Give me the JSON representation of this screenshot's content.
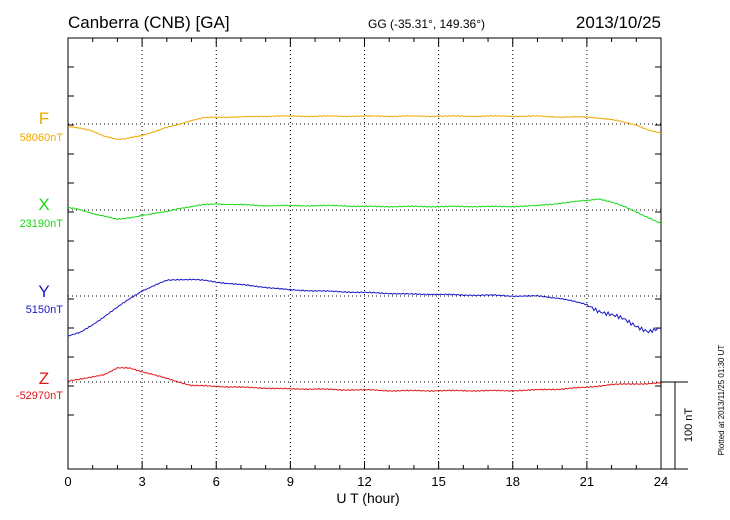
{
  "header": {
    "station": "Canberra (CNB)  [GA]",
    "coords": "GG (-35.31°, 149.36°)",
    "date": "2013/10/25"
  },
  "side_note": "Plotted at 2013/11/25 01:30 UT",
  "colors": {
    "F": "#f0a800",
    "X": "#18d818",
    "Y": "#1818c8",
    "Z": "#e01818",
    "frame": "#000000"
  },
  "chart_data": {
    "type": "line",
    "title": "Canberra (CNB)  [GA]",
    "xlabel": "U T (hour)",
    "ylabel": "",
    "xlim": [
      0,
      24
    ],
    "x_ticks": [
      0,
      3,
      6,
      9,
      12,
      15,
      18,
      21,
      24
    ],
    "x_tick_labels": [
      "0",
      "3",
      "6",
      "9",
      "12",
      "15",
      "18",
      "21",
      "24"
    ],
    "y_units": "nT",
    "grid": true,
    "scale_bar": {
      "label": "100 nT",
      "value_nT": 100
    },
    "series": [
      {
        "name": "F",
        "baseline_label": "58060nT",
        "baseline_nT": 58060,
        "x": [
          0,
          0.5,
          1,
          1.5,
          2,
          2.3,
          2.6,
          3,
          3.5,
          4,
          4.5,
          5,
          5.5,
          6,
          7,
          8,
          9,
          10,
          11,
          12,
          13,
          14,
          15,
          16,
          17,
          18,
          19,
          20,
          21,
          21.5,
          22,
          22.5,
          23,
          23.5,
          24
        ],
        "values": [
          -3,
          -5,
          -8,
          -14,
          -18,
          -17,
          -15,
          -13,
          -9,
          -4,
          0,
          4,
          7,
          8,
          8,
          9,
          9,
          9,
          9,
          9,
          9,
          9,
          9,
          9,
          9,
          9,
          9,
          8,
          8,
          7,
          5,
          2,
          -1,
          -7,
          -11
        ]
      },
      {
        "name": "X",
        "baseline_label": "23190nT",
        "baseline_nT": 23190,
        "x": [
          0,
          0.5,
          1,
          1.5,
          2,
          2.5,
          3,
          3.5,
          4,
          4.5,
          5,
          5.5,
          6,
          7,
          8,
          9,
          10,
          11,
          12,
          13,
          14,
          15,
          16,
          17,
          18,
          19,
          20,
          21,
          21.5,
          22,
          22.5,
          23,
          23.5,
          24
        ],
        "values": [
          3,
          0,
          -4,
          -7,
          -11,
          -9,
          -6,
          -4,
          -2,
          2,
          4,
          6,
          7,
          6,
          5,
          5,
          5,
          5,
          4,
          4,
          4,
          4,
          4,
          4,
          4,
          5,
          8,
          11,
          13,
          9,
          4,
          -2,
          -9,
          -16
        ]
      },
      {
        "name": "Y",
        "baseline_label": "5150nT",
        "baseline_nT": 5150,
        "x": [
          0,
          0.5,
          1,
          1.5,
          2,
          2.5,
          3,
          3.5,
          4,
          4.5,
          5,
          5.5,
          6,
          7,
          8,
          9,
          10,
          11,
          12,
          13,
          14,
          15,
          16,
          17,
          18,
          19,
          20,
          21,
          21.5,
          22,
          22.5,
          23,
          23.5,
          24
        ],
        "values": [
          -46,
          -42,
          -33,
          -23,
          -13,
          -3,
          6,
          12,
          18,
          19,
          19,
          18,
          16,
          13,
          10,
          7,
          6,
          5,
          4,
          3,
          2,
          2,
          1,
          1,
          0,
          0,
          -3,
          -10,
          -17,
          -22,
          -27,
          -34,
          -41,
          -38
        ]
      },
      {
        "name": "Z",
        "baseline_label": "-52970nT",
        "baseline_nT": -52970,
        "x": [
          0,
          0.5,
          1,
          1.5,
          2,
          2.5,
          3,
          3.5,
          4,
          4.5,
          5,
          6,
          7,
          8,
          9,
          10,
          11,
          12,
          13,
          14,
          15,
          16,
          17,
          18,
          19,
          20,
          21,
          22,
          23,
          23.5,
          24
        ],
        "values": [
          1,
          3,
          6,
          9,
          16,
          16,
          12,
          8,
          4,
          0,
          -4,
          -5,
          -6,
          -7,
          -8,
          -8,
          -9,
          -9,
          -10,
          -10,
          -10,
          -10,
          -10,
          -10,
          -9,
          -8,
          -6,
          -3,
          -2,
          -2,
          -1
        ]
      }
    ]
  }
}
